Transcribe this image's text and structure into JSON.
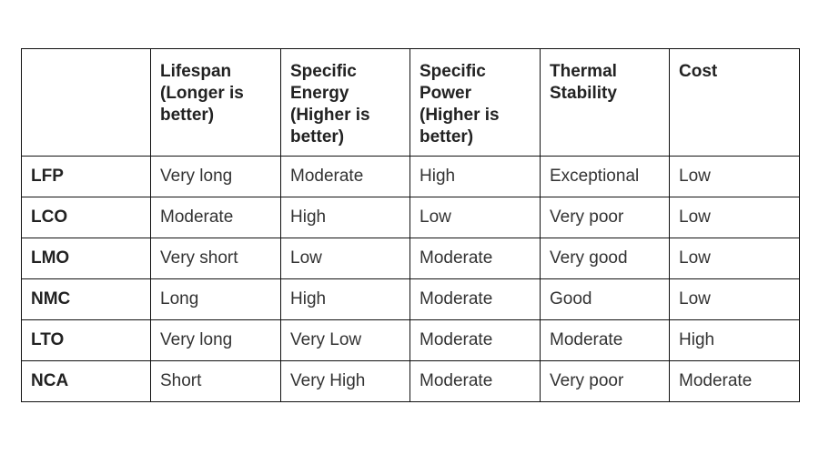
{
  "table": {
    "headers": [
      {
        "lines": [
          ""
        ]
      },
      {
        "lines": [
          "Lifespan",
          "(Longer is",
          "better)"
        ]
      },
      {
        "lines": [
          "Specific",
          "Energy",
          "(Higher is",
          "better)"
        ]
      },
      {
        "lines": [
          "Specific",
          "Power",
          "(Higher is",
          "better)"
        ]
      },
      {
        "lines": [
          "Thermal",
          "Stability"
        ]
      },
      {
        "lines": [
          "Cost"
        ]
      }
    ],
    "rows": [
      {
        "label": "LFP",
        "cells": [
          "Very long",
          "Moderate",
          "High",
          "Exceptional",
          "Low"
        ]
      },
      {
        "label": "LCO",
        "cells": [
          "Moderate",
          "High",
          "Low",
          "Very poor",
          "Low"
        ]
      },
      {
        "label": "LMO",
        "cells": [
          "Very short",
          "Low",
          "Moderate",
          "Very good",
          "Low"
        ]
      },
      {
        "label": "NMC",
        "cells": [
          "Long",
          "High",
          "Moderate",
          "Good",
          "Low"
        ]
      },
      {
        "label": "LTO",
        "cells": [
          "Very long",
          "Very Low",
          "Moderate",
          "Moderate",
          "High"
        ]
      },
      {
        "label": "NCA",
        "cells": [
          "Short",
          "Very High",
          "Moderate",
          "Very poor",
          "Moderate"
        ]
      }
    ]
  }
}
